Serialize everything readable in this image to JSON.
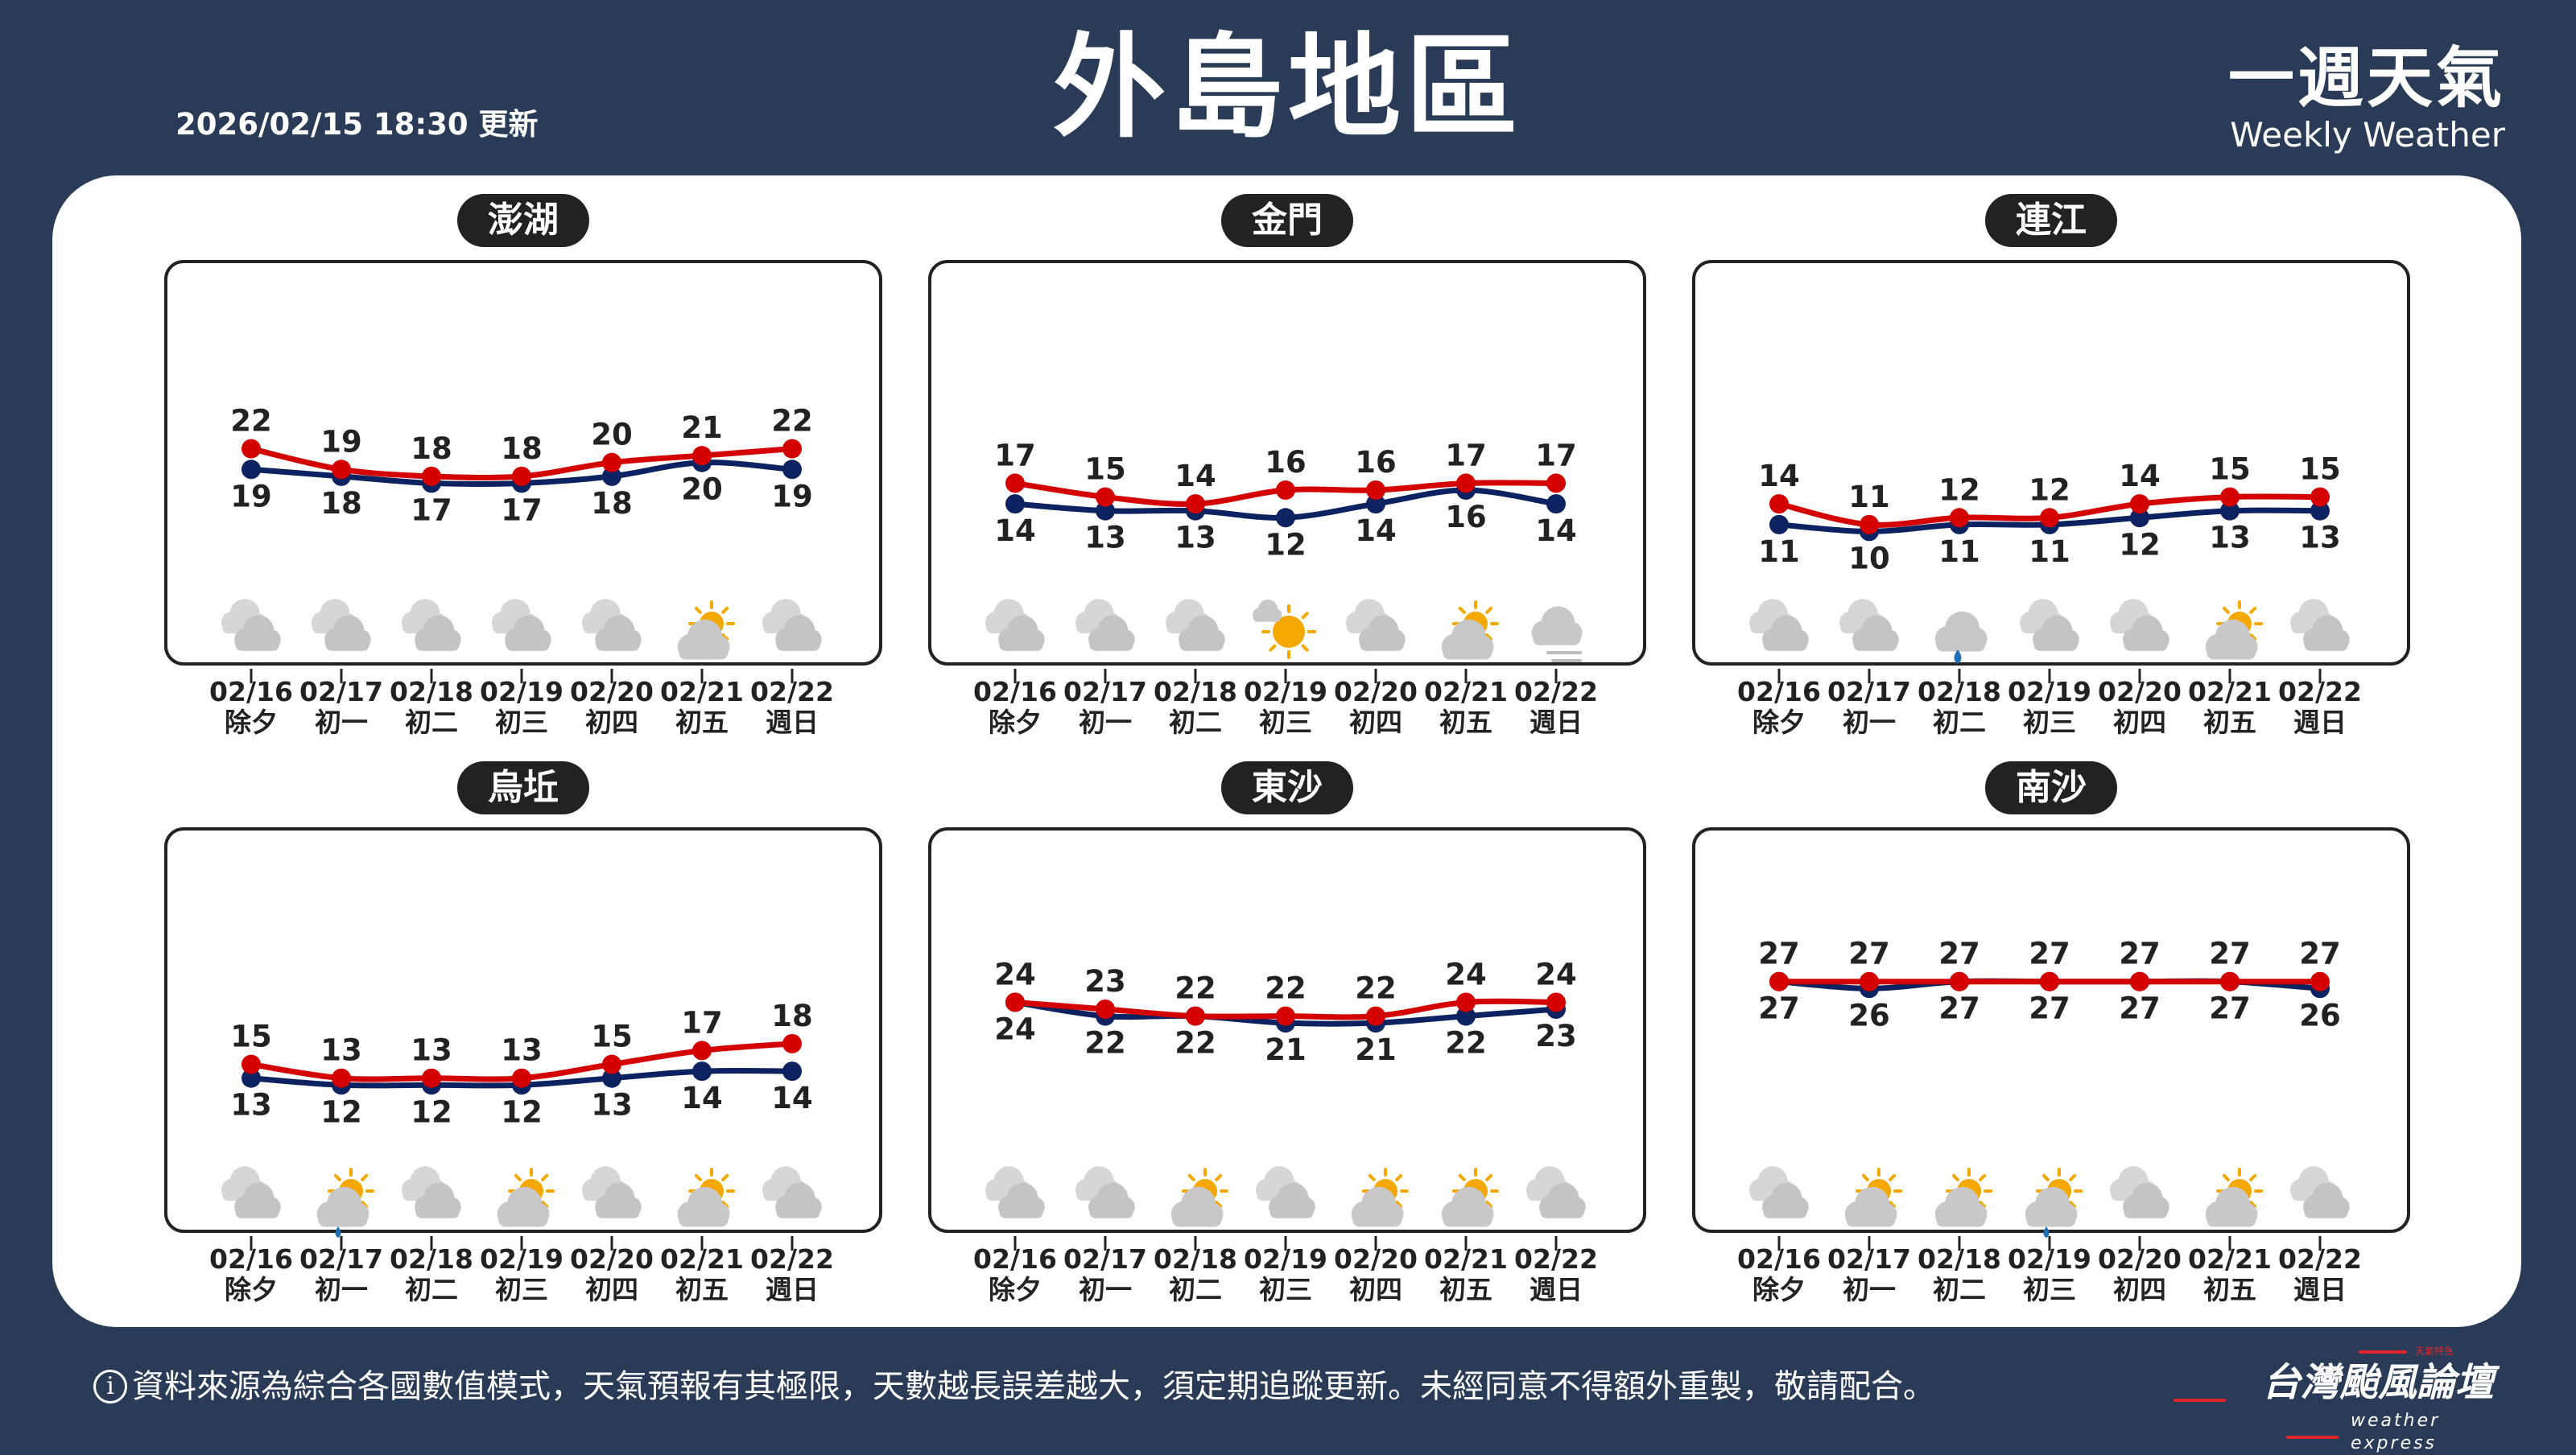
{
  "header": {
    "updated": "2026/02/15 18:30 更新",
    "title": "外島地區",
    "brand_zh": "一週天氣",
    "brand_en": "Weekly Weather"
  },
  "colors": {
    "background": "#2a3b57",
    "high": "#d40000",
    "low": "#0d2260",
    "sun": "#f5a800",
    "cloud": "#c8c8c8",
    "rain": "#1f6fb5"
  },
  "dates": [
    {
      "date": "02/16",
      "lunar": "除夕"
    },
    {
      "date": "02/17",
      "lunar": "初一"
    },
    {
      "date": "02/18",
      "lunar": "初二"
    },
    {
      "date": "02/19",
      "lunar": "初三"
    },
    {
      "date": "02/20",
      "lunar": "初四"
    },
    {
      "date": "02/21",
      "lunar": "初五"
    },
    {
      "date": "02/22",
      "lunar": "週日"
    }
  ],
  "panels": [
    {
      "name": "澎湖",
      "high": [
        22,
        19,
        18,
        18,
        20,
        21,
        22
      ],
      "low": [
        19,
        18,
        17,
        17,
        18,
        20,
        19
      ],
      "icons": [
        "cloudy",
        "cloudy",
        "cloudy",
        "cloudy",
        "cloudy",
        "partly-cloudy",
        "cloudy"
      ]
    },
    {
      "name": "金門",
      "high": [
        17,
        15,
        14,
        16,
        16,
        17,
        17
      ],
      "low": [
        14,
        13,
        13,
        12,
        14,
        16,
        14
      ],
      "icons": [
        "cloudy",
        "cloudy",
        "cloudy",
        "mostly-sunny",
        "cloudy",
        "partly-cloudy",
        "fog"
      ]
    },
    {
      "name": "連江",
      "high": [
        14,
        11,
        12,
        12,
        14,
        15,
        15
      ],
      "low": [
        11,
        10,
        11,
        11,
        12,
        13,
        13
      ],
      "icons": [
        "cloudy",
        "cloudy",
        "rain",
        "cloudy",
        "cloudy",
        "partly-cloudy",
        "cloudy"
      ]
    },
    {
      "name": "烏坵",
      "high": [
        15,
        13,
        13,
        13,
        15,
        17,
        18
      ],
      "low": [
        13,
        12,
        12,
        12,
        13,
        14,
        14
      ],
      "icons": [
        "cloudy",
        "partly-cloudy-rain",
        "cloudy",
        "partly-cloudy",
        "cloudy",
        "partly-cloudy",
        "cloudy"
      ]
    },
    {
      "name": "東沙",
      "high": [
        24,
        23,
        22,
        22,
        22,
        24,
        24
      ],
      "low": [
        24,
        22,
        22,
        21,
        21,
        22,
        23
      ],
      "icons": [
        "cloudy",
        "cloudy",
        "partly-cloudy",
        "cloudy",
        "partly-cloudy",
        "partly-cloudy",
        "cloudy"
      ]
    },
    {
      "name": "南沙",
      "high": [
        27,
        27,
        27,
        27,
        27,
        27,
        27
      ],
      "low": [
        27,
        26,
        27,
        27,
        27,
        27,
        26
      ],
      "icons": [
        "cloudy",
        "partly-cloudy",
        "partly-cloudy",
        "partly-cloudy-rain",
        "cloudy",
        "partly-cloudy",
        "cloudy"
      ]
    }
  ],
  "footer": {
    "info_icon": "i",
    "text": "資料來源為綜合各國數值模式，天氣預報有其極限，天數越長誤差越大，須定期追蹤更新。未經同意不得額外重製，敬請配合。"
  },
  "logo": {
    "zh": "台灣颱風論壇",
    "en": "weather express",
    "small": "天氣特急"
  }
}
